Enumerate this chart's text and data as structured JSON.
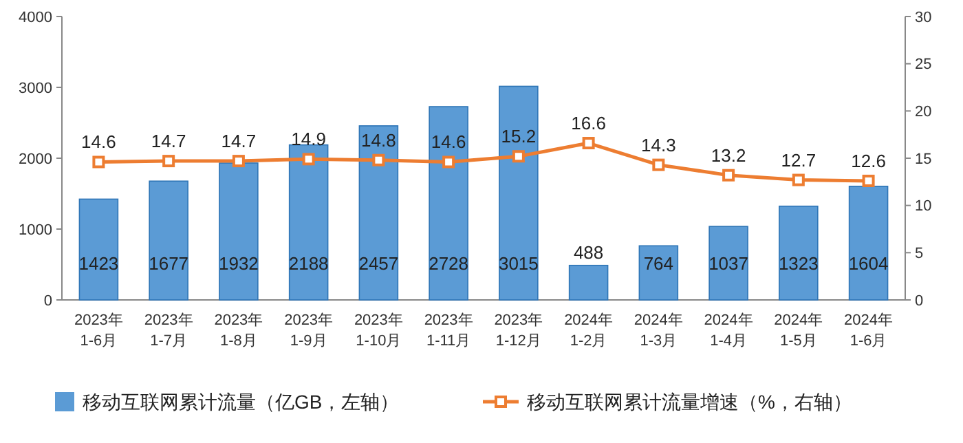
{
  "chart_data": {
    "type": "bar",
    "categories": [
      "2023年\n1-6月",
      "2023年\n1-7月",
      "2023年\n1-8月",
      "2023年\n1-9月",
      "2023年\n1-10月",
      "2023年\n1-11月",
      "2023年\n1-12月",
      "2024年\n1-2月",
      "2024年\n1-3月",
      "2024年\n1-4月",
      "2024年\n1-5月",
      "2024年\n1-6月"
    ],
    "series": [
      {
        "name": "移动互联网累计流量（亿GB，左轴）",
        "color": "#5b9bd5",
        "values": [
          1423,
          1677,
          1932,
          2188,
          2457,
          2728,
          3015,
          488,
          764,
          1037,
          1323,
          1604
        ]
      },
      {
        "name": "移动互联网累计流量增速（%，右轴）",
        "type": "line",
        "axis": "y2",
        "color": "#ed7d31",
        "values": [
          14.6,
          14.7,
          14.7,
          14.9,
          14.8,
          14.6,
          15.2,
          16.6,
          14.3,
          13.2,
          12.7,
          12.6
        ]
      }
    ],
    "ylim": [
      0,
      4000
    ],
    "yticks": [
      0,
      1000,
      2000,
      3000,
      4000
    ],
    "y2lim": [
      0,
      30
    ],
    "y2ticks": [
      0,
      5,
      10,
      15,
      20,
      25,
      30
    ],
    "data_labels": true,
    "marker": "square",
    "line_style": "solid",
    "legend": "bottom"
  }
}
